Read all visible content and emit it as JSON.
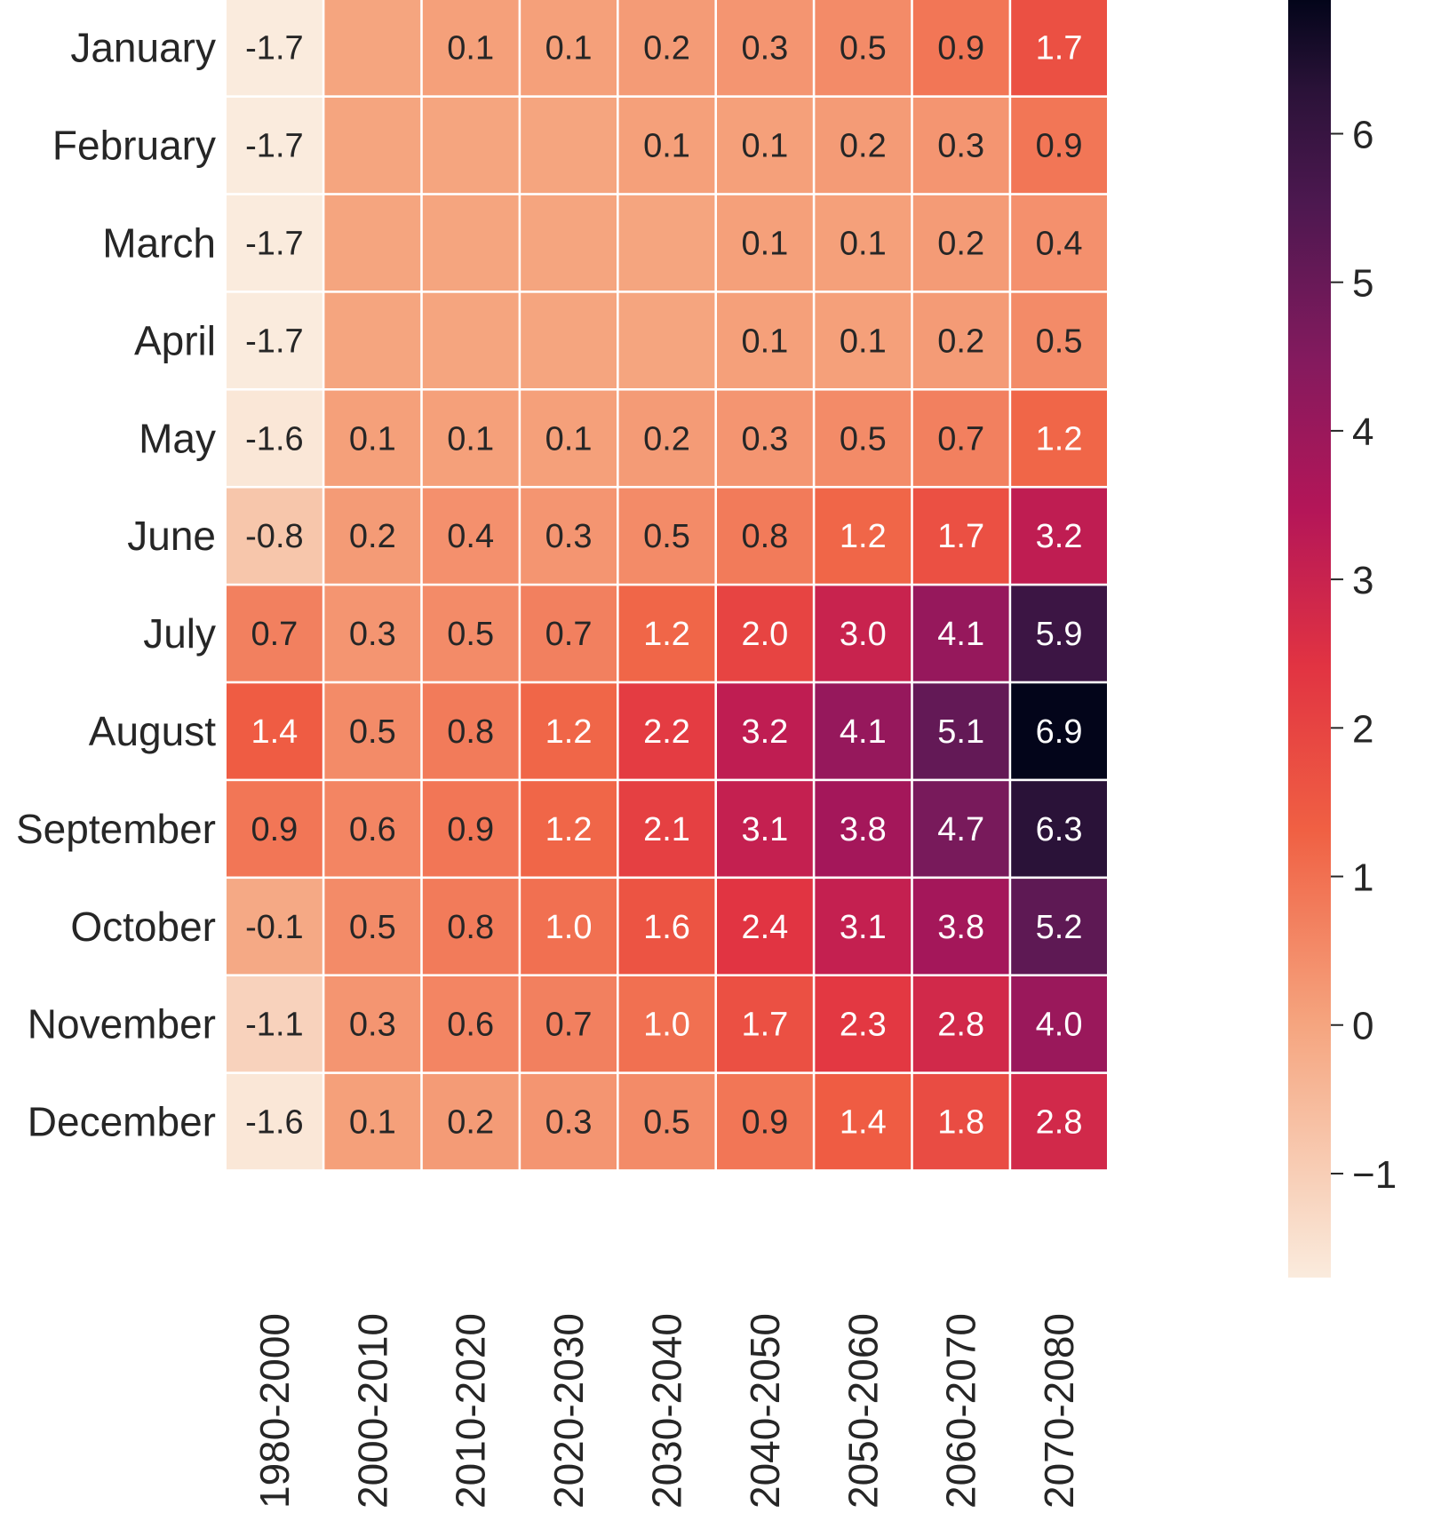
{
  "chart_data": {
    "type": "heatmap",
    "title": "",
    "xlabel": "",
    "ylabel": "",
    "rows": [
      "January",
      "February",
      "March",
      "April",
      "May",
      "June",
      "July",
      "August",
      "September",
      "October",
      "November",
      "December"
    ],
    "columns": [
      "1980-2000",
      "2000-2010",
      "2010-2020",
      "2020-2030",
      "2030-2040",
      "2040-2050",
      "2050-2060",
      "2060-2070",
      "2070-2080"
    ],
    "values": [
      [
        -1.7,
        0.0,
        0.1,
        0.1,
        0.2,
        0.3,
        0.5,
        0.9,
        1.7
      ],
      [
        -1.7,
        0.0,
        0.0,
        0.0,
        0.1,
        0.1,
        0.2,
        0.3,
        0.9
      ],
      [
        -1.7,
        0.0,
        0.0,
        0.0,
        0.0,
        0.1,
        0.1,
        0.2,
        0.4
      ],
      [
        -1.7,
        0.0,
        0.0,
        0.0,
        0.0,
        0.1,
        0.1,
        0.2,
        0.5
      ],
      [
        -1.6,
        0.1,
        0.1,
        0.1,
        0.2,
        0.3,
        0.5,
        0.7,
        1.2
      ],
      [
        -0.8,
        0.2,
        0.4,
        0.3,
        0.5,
        0.8,
        1.2,
        1.7,
        3.2
      ],
      [
        0.7,
        0.3,
        0.5,
        0.7,
        1.2,
        2.0,
        3.0,
        4.1,
        5.9
      ],
      [
        1.4,
        0.5,
        0.8,
        1.2,
        2.2,
        3.2,
        4.1,
        5.1,
        6.9
      ],
      [
        0.9,
        0.6,
        0.9,
        1.2,
        2.1,
        3.1,
        3.8,
        4.7,
        6.3
      ],
      [
        -0.1,
        0.5,
        0.8,
        1.0,
        1.6,
        2.4,
        3.1,
        3.8,
        5.2
      ],
      [
        -1.1,
        0.3,
        0.6,
        0.7,
        1.0,
        1.7,
        2.3,
        2.8,
        4.0
      ],
      [
        -1.6,
        0.1,
        0.2,
        0.3,
        0.5,
        0.9,
        1.4,
        1.8,
        2.8
      ]
    ],
    "cell_labels": [
      [
        "-1.7",
        "",
        "0.1",
        "0.1",
        "0.2",
        "0.3",
        "0.5",
        "0.9",
        "1.7"
      ],
      [
        "-1.7",
        "",
        "",
        "",
        "0.1",
        "0.1",
        "0.2",
        "0.3",
        "0.9"
      ],
      [
        "-1.7",
        "",
        "",
        "",
        "",
        "0.1",
        "0.1",
        "0.2",
        "0.4"
      ],
      [
        "-1.7",
        "",
        "",
        "",
        "",
        "0.1",
        "0.1",
        "0.2",
        "0.5"
      ],
      [
        "-1.6",
        "0.1",
        "0.1",
        "0.1",
        "0.2",
        "0.3",
        "0.5",
        "0.7",
        "1.2"
      ],
      [
        "-0.8",
        "0.2",
        "0.4",
        "0.3",
        "0.5",
        "0.8",
        "1.2",
        "1.7",
        "3.2"
      ],
      [
        "0.7",
        "0.3",
        "0.5",
        "0.7",
        "1.2",
        "2.0",
        "3.0",
        "4.1",
        "5.9"
      ],
      [
        "1.4",
        "0.5",
        "0.8",
        "1.2",
        "2.2",
        "3.2",
        "4.1",
        "5.1",
        "6.9"
      ],
      [
        "0.9",
        "0.6",
        "0.9",
        "1.2",
        "2.1",
        "3.1",
        "3.8",
        "4.7",
        "6.3"
      ],
      [
        "-0.1",
        "0.5",
        "0.8",
        "1.0",
        "1.6",
        "2.4",
        "3.1",
        "3.8",
        "5.2"
      ],
      [
        "-1.1",
        "0.3",
        "0.6",
        "0.7",
        "1.0",
        "1.7",
        "2.3",
        "2.8",
        "4.0"
      ],
      [
        "-1.6",
        "0.1",
        "0.2",
        "0.3",
        "0.5",
        "0.9",
        "1.4",
        "1.8",
        "2.8"
      ]
    ],
    "colorbar": {
      "range": [
        -1.7,
        6.9
      ],
      "ticks": [
        6,
        5,
        4,
        3,
        2,
        1,
        0,
        -1
      ],
      "tick_labels": [
        "6",
        "5",
        "4",
        "3",
        "2",
        "1",
        "0",
        "−1"
      ]
    },
    "colormap": {
      "name": "rocket_r",
      "stops": [
        [
          0.0,
          "#faebdd"
        ],
        [
          0.2,
          "#f5a47e"
        ],
        [
          0.35,
          "#f06043"
        ],
        [
          0.48,
          "#e13342"
        ],
        [
          0.6,
          "#b41658"
        ],
        [
          0.72,
          "#831a5e"
        ],
        [
          0.84,
          "#4d1850"
        ],
        [
          0.93,
          "#2a1238"
        ],
        [
          1.0,
          "#03051a"
        ]
      ]
    },
    "grid": false,
    "cell_gap_color": "#ffffff"
  }
}
